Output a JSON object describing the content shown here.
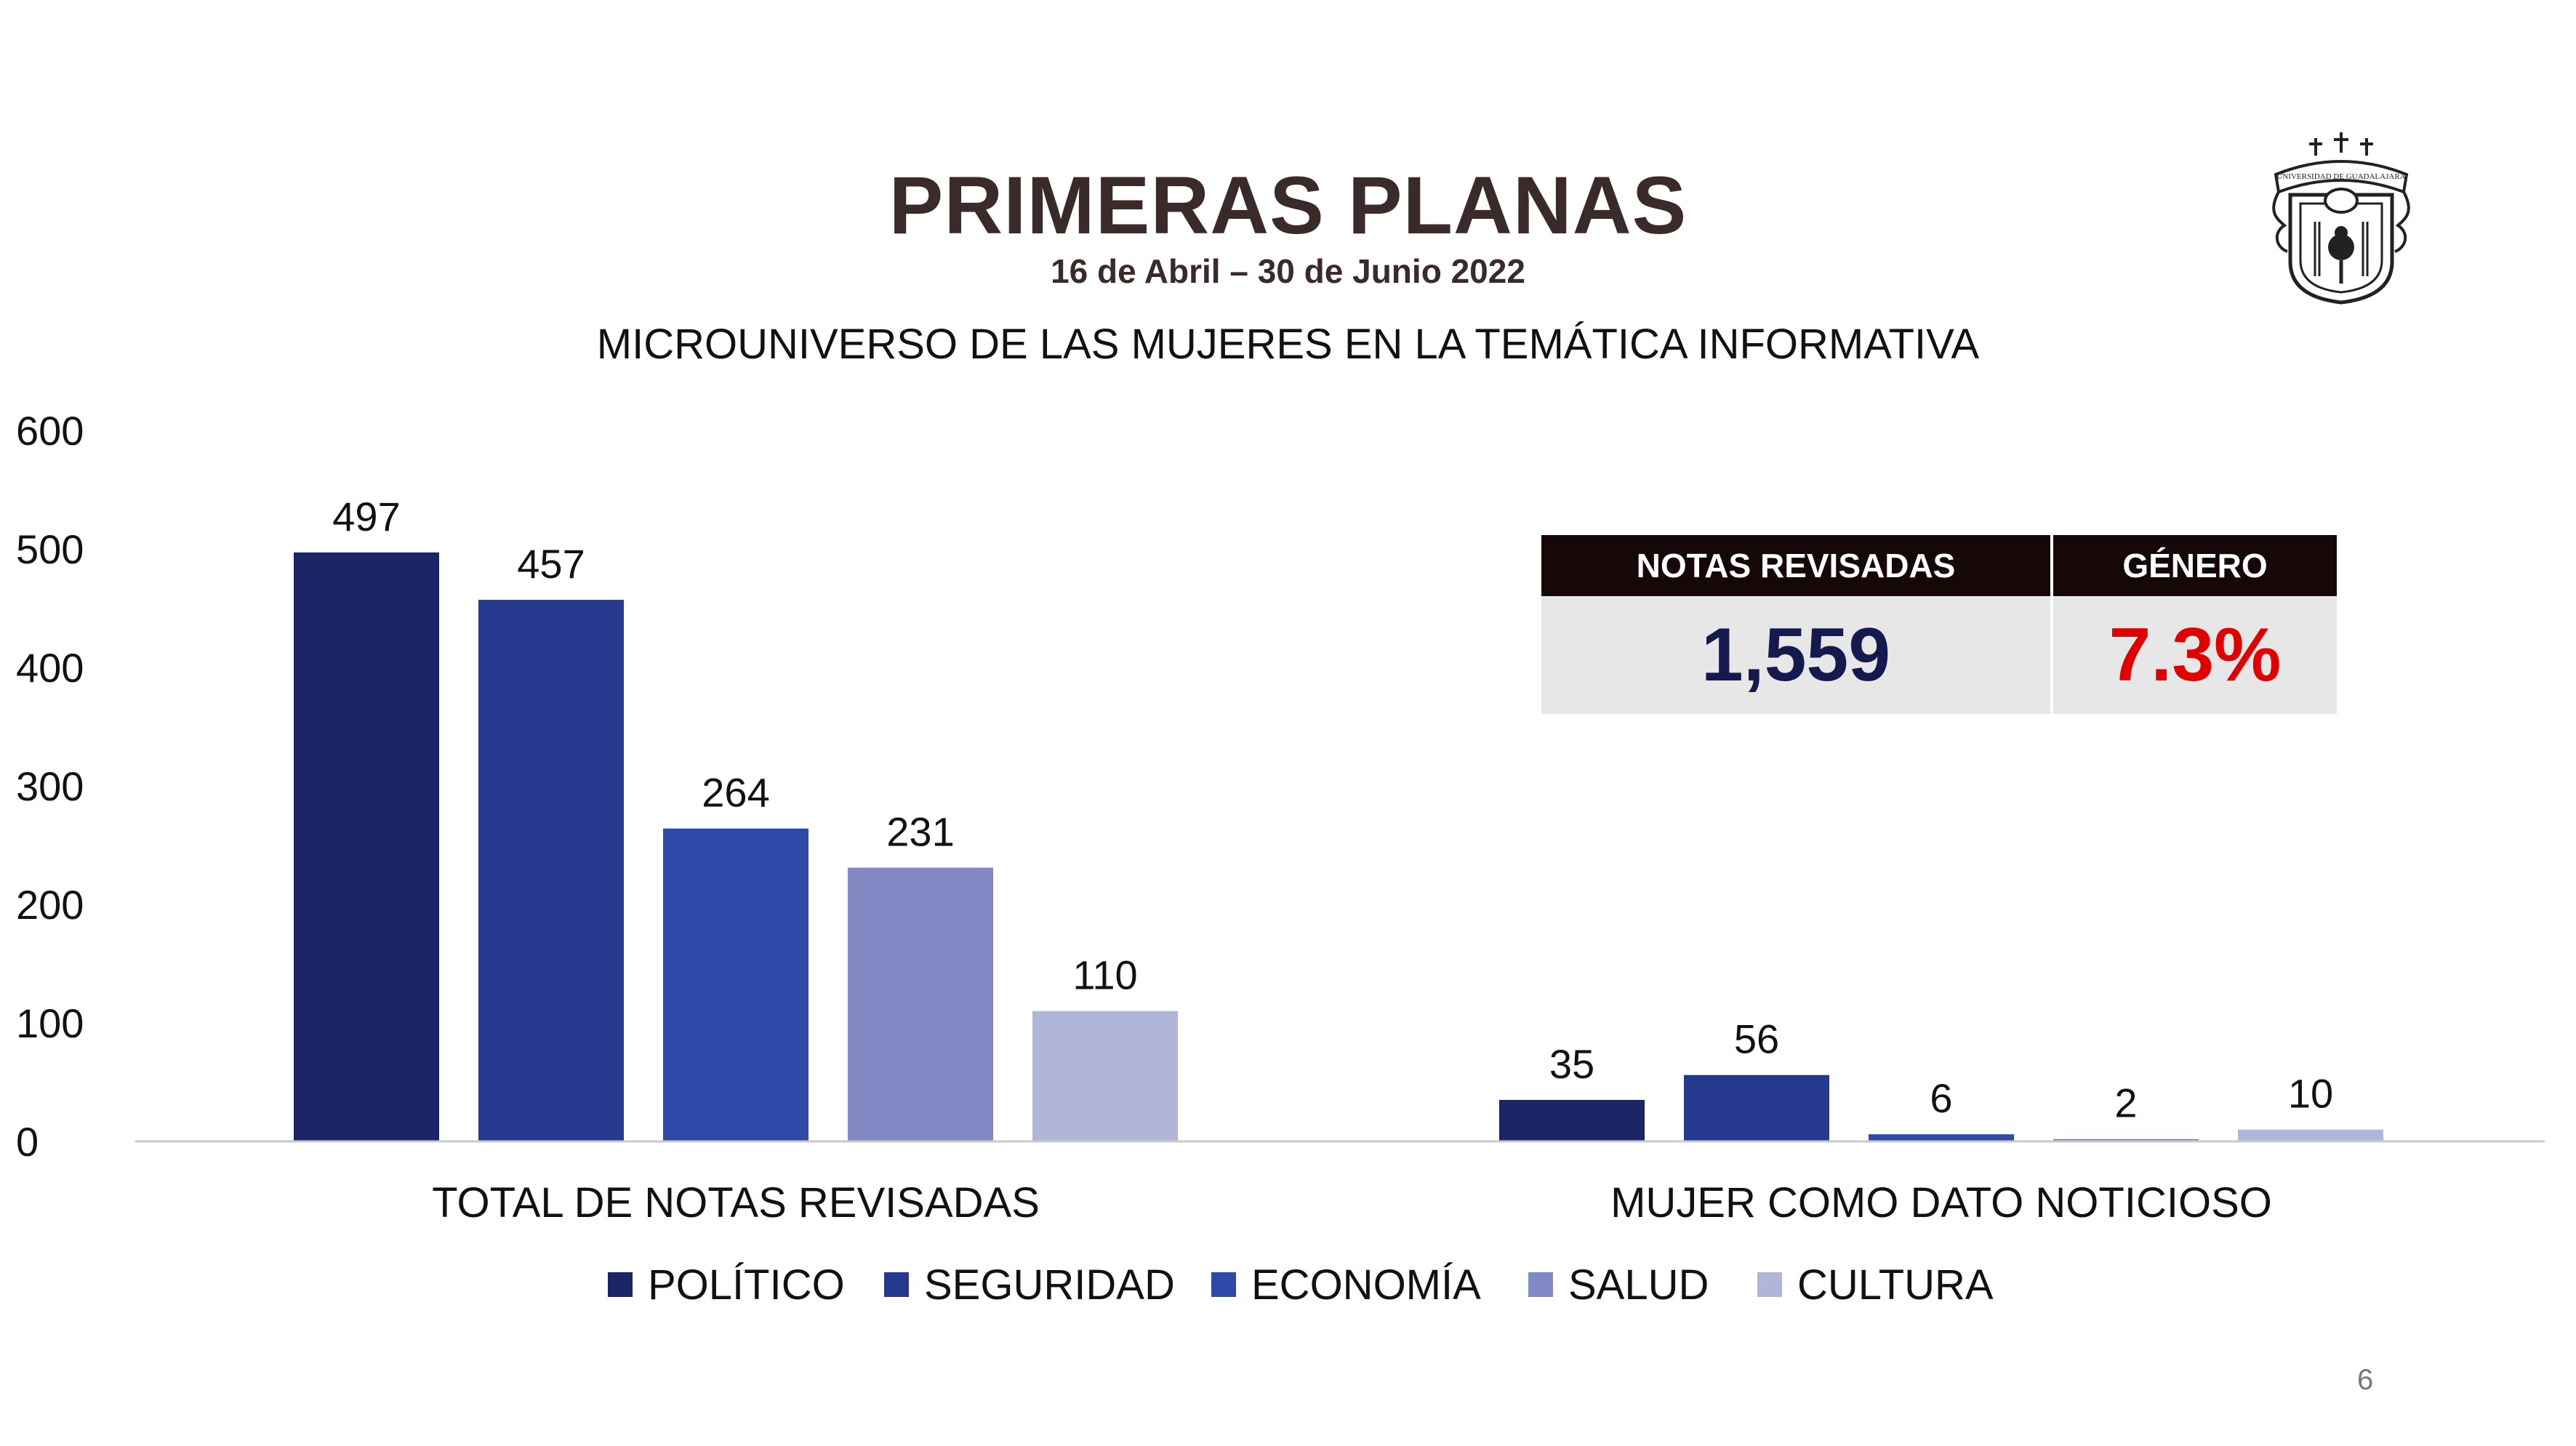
{
  "header": {
    "title": "PRIMERAS PLANAS",
    "date_range": "16 de Abril – 30 de Junio 2022"
  },
  "logo": {
    "name": "university-crest",
    "text": "UNIVERSIDAD DE GUADALAJARA"
  },
  "stats": {
    "col1_label": "NOTAS REVISADAS",
    "col2_label": "GÉNERO",
    "col1_value": "1,559",
    "col2_value": "7.3%"
  },
  "page_number": "6",
  "colors": {
    "politico": "#1a2466",
    "seguridad": "#253a8e",
    "economia": "#2d4aa8",
    "salud": "#8089c3",
    "cultura": "#b0b6d9",
    "title": "#3b2a2a",
    "genero_value": "#e00000"
  },
  "chart_data": {
    "type": "bar",
    "title": "MICROUNIVERSO DE LAS MUJERES EN LA TEMÁTICA INFORMATIVA",
    "categories": [
      "TOTAL DE NOTAS REVISADAS",
      "MUJER COMO DATO NOTICIOSO"
    ],
    "series": [
      {
        "name": "POLÍTICO",
        "values": [
          497,
          35
        ]
      },
      {
        "name": "SEGURIDAD",
        "values": [
          457,
          56
        ]
      },
      {
        "name": "ECONOMÍA",
        "values": [
          264,
          6
        ]
      },
      {
        "name": "SALUD",
        "values": [
          231,
          2
        ]
      },
      {
        "name": "CULTURA",
        "values": [
          110,
          10
        ]
      }
    ],
    "ylim": [
      0,
      600
    ],
    "yticks": [
      0,
      100,
      200,
      300,
      400,
      500,
      600
    ],
    "xlabel": "",
    "ylabel": "",
    "grid": false,
    "legend": "bottom"
  }
}
